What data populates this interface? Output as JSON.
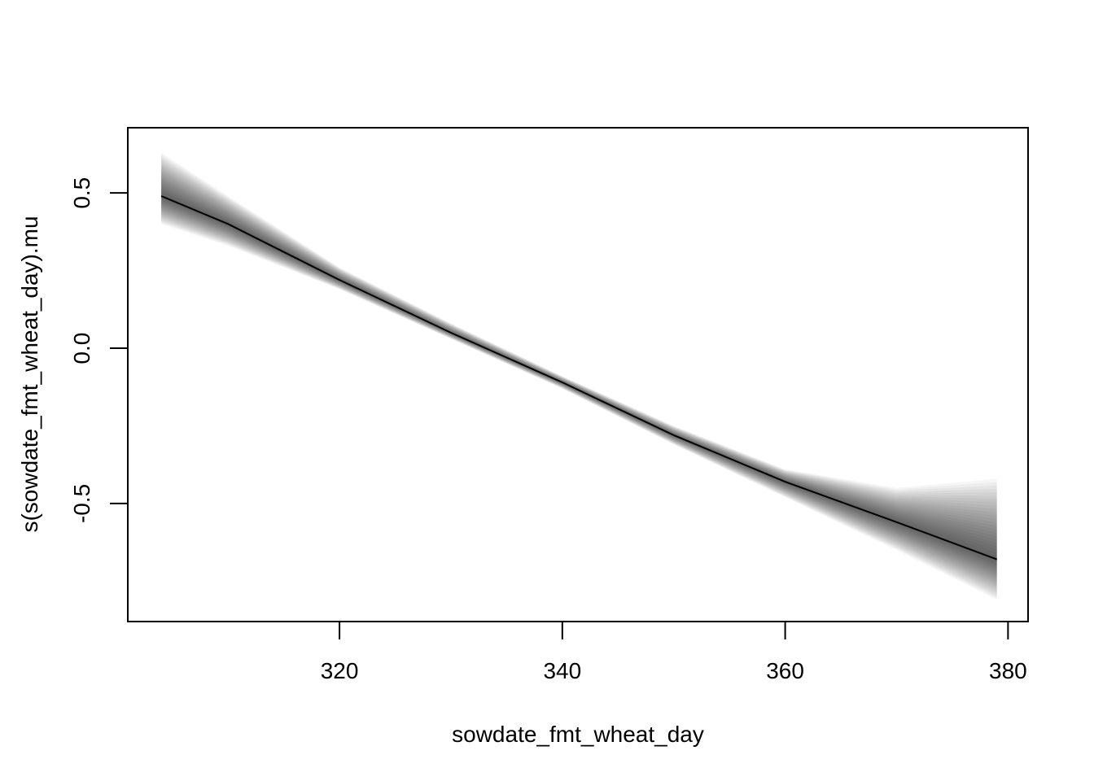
{
  "chart_data": {
    "type": "line",
    "title": "",
    "xlabel": "sowdate_fmt_wheat_day",
    "ylabel": "s(sowdate_fmt_wheat_day).mu",
    "xlim": [
      301,
      381.8
    ],
    "ylim": [
      -0.88,
      0.71
    ],
    "x_ticks": [
      320,
      340,
      360,
      380
    ],
    "x_tick_labels": [
      "320",
      "340",
      "360",
      "380"
    ],
    "y_ticks": [
      -0.5,
      0.0,
      0.5
    ],
    "y_tick_labels": [
      "-0.5",
      "0.0",
      "0.5"
    ],
    "grid": false,
    "legend": "none",
    "series": [
      {
        "x": [
          304,
          310,
          320,
          330,
          340,
          350,
          360,
          370,
          379
        ],
        "values": [
          0.49,
          0.4,
          0.22,
          0.05,
          -0.11,
          -0.28,
          -0.43,
          -0.56,
          -0.68
        ],
        "upper": [
          0.63,
          0.49,
          0.26,
          0.08,
          -0.09,
          -0.25,
          -0.39,
          -0.45,
          -0.42
        ],
        "lower": [
          0.4,
          0.33,
          0.19,
          0.03,
          -0.13,
          -0.31,
          -0.48,
          -0.65,
          -0.81
        ]
      }
    ],
    "colors": {
      "line": "#000000",
      "band": "#000000",
      "frame": "#000000"
    }
  }
}
